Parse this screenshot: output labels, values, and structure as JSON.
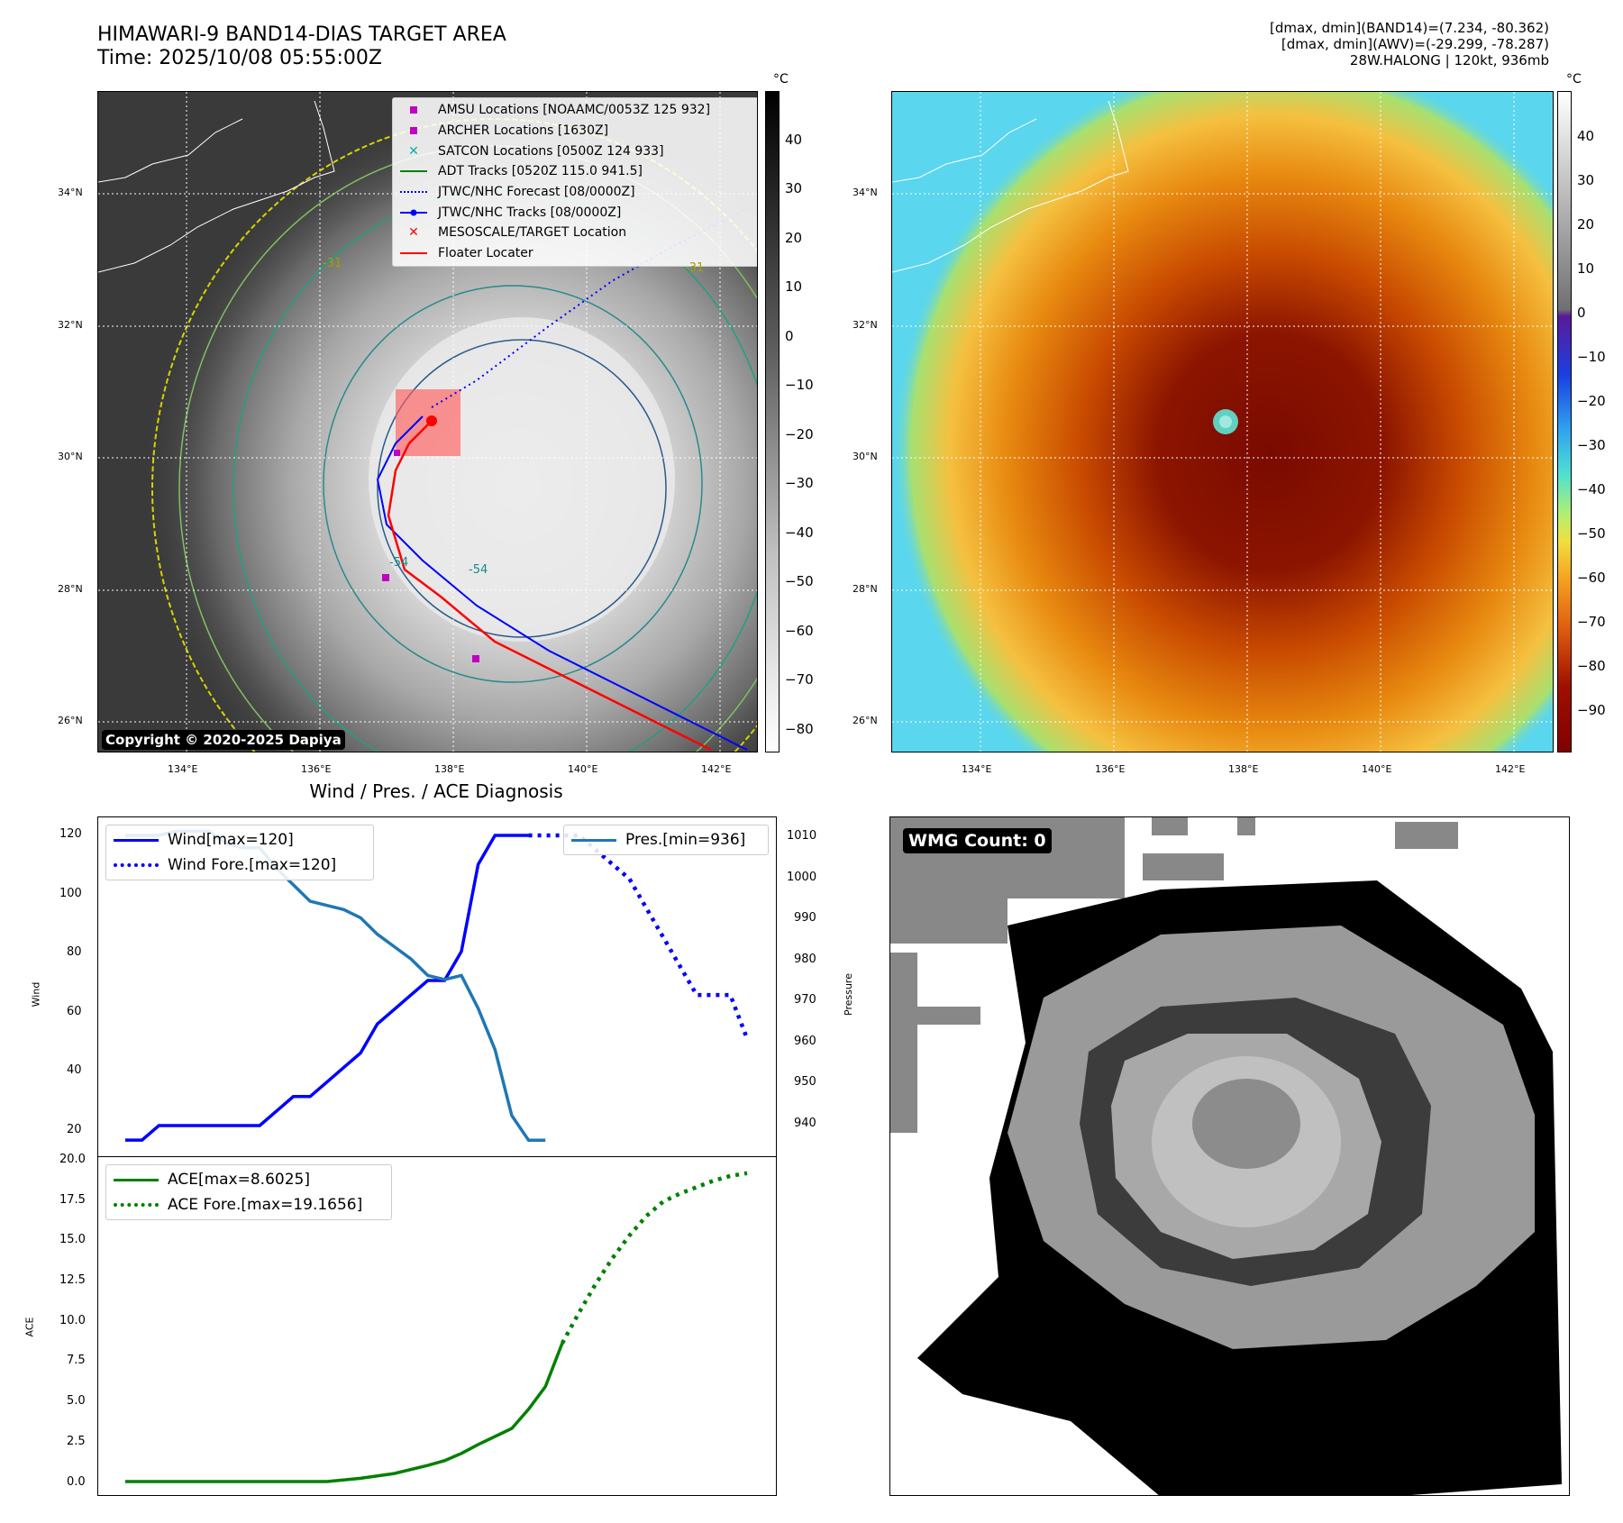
{
  "header": {
    "title_line1": "HIMAWARI-9 BAND14-DIAS TARGET AREA",
    "title_line2": "Time: 2025/10/08 05:55:00Z",
    "right_line1": "[dmax, dmin](BAND14)=(7.234, -80.362)",
    "right_line2": "[dmax, dmin](AWV)=(-29.299, -78.287)",
    "right_line3": "28W.HALONG | 120kt, 936mb"
  },
  "map_left": {
    "lat_labels": [
      "34°N",
      "32°N",
      "30°N",
      "28°N",
      "26°N"
    ],
    "lon_labels": [
      "134°E",
      "136°E",
      "138°E",
      "140°E",
      "142°E"
    ],
    "copyright": "Copyright © 2020-2025 Dapiya",
    "legend": [
      {
        "label": "AMSU Locations [NOAAMC/0053Z 125 932]",
        "symbol": "square",
        "color": "#c000c0"
      },
      {
        "label": "ARCHER Locations [1630Z]",
        "symbol": "square",
        "color": "#c000c0"
      },
      {
        "label": "SATCON Locations [0500Z 124 933]",
        "symbol": "x",
        "color": "#00b0b0"
      },
      {
        "label": "ADT Tracks [0520Z 115.0 941.5]",
        "symbol": "line",
        "color": "#008000"
      },
      {
        "label": "JTWC/NHC Forecast [08/0000Z]",
        "symbol": "dotted",
        "color": "#0000ff"
      },
      {
        "label": "JTWC/NHC Tracks [08/0000Z]",
        "symbol": "dotline",
        "color": "#0000ff"
      },
      {
        "label": "MESOSCALE/TARGET Location",
        "symbol": "x",
        "color": "#ff0000"
      },
      {
        "label": "Floater Locater",
        "symbol": "line",
        "color": "#ff0000"
      }
    ],
    "contour_labels": [
      "-31",
      "-54",
      "-54",
      "-31"
    ],
    "colorbar": {
      "unit": "°C",
      "ticks": [
        "40",
        "30",
        "20",
        "10",
        "0",
        "−10",
        "−20",
        "−30",
        "−40",
        "−50",
        "−60",
        "−70",
        "−80"
      ]
    }
  },
  "map_right": {
    "lat_labels": [
      "34°N",
      "32°N",
      "30°N",
      "28°N",
      "26°N"
    ],
    "lon_labels": [
      "134°E",
      "136°E",
      "138°E",
      "140°E",
      "142°E"
    ],
    "colorbar": {
      "unit": "°C",
      "ticks": [
        "40",
        "30",
        "20",
        "10",
        "0",
        "−10",
        "−20",
        "−30",
        "−40",
        "−50",
        "−60",
        "−70",
        "−80",
        "−90"
      ]
    }
  },
  "diagnosis": {
    "title": "Wind / Pres. / ACE Diagnosis",
    "wind_axis_label": "Wind",
    "pressure_axis_label": "Pressure",
    "ace_axis_label": "ACE",
    "wind_ticks": [
      "120",
      "100",
      "80",
      "60",
      "40",
      "20"
    ],
    "pres_ticks": [
      "1010",
      "1000",
      "990",
      "980",
      "970",
      "960",
      "950",
      "940"
    ],
    "ace_ticks": [
      "20.0",
      "17.5",
      "15.0",
      "12.5",
      "10.0",
      "7.5",
      "5.0",
      "2.5",
      "0.0"
    ],
    "legend_wind": "Wind[max=120]",
    "legend_wind_fore": "Wind Fore.[max=120]",
    "legend_pres": "Pres.[min=936]",
    "legend_ace": "ACE[max=8.6025]",
    "legend_ace_fore": "ACE Fore.[max=19.1656]"
  },
  "wmg": {
    "badge": "WMG Count: 0"
  },
  "chart_data": [
    {
      "type": "line",
      "title": "Wind / Pres. / ACE Diagnosis",
      "ylabel": "Wind",
      "ylabel_right": "Pressure",
      "ylim": [
        14,
        125
      ],
      "ylim_right": [
        932,
        1014
      ],
      "x": [
        0,
        1,
        2,
        3,
        4,
        5,
        6,
        7,
        8,
        9,
        10,
        11,
        12,
        13,
        14,
        15,
        16,
        17,
        18,
        19,
        20,
        21,
        22,
        23,
        24,
        25,
        26,
        27,
        28,
        29,
        30,
        31,
        32,
        33,
        34,
        35,
        36,
        37
      ],
      "series": [
        {
          "name": "Wind[max=120]",
          "axis": "left",
          "style": "solid",
          "color": "#0000ff",
          "x": [
            0,
            1,
            2,
            3,
            4,
            5,
            6,
            7,
            8,
            9,
            10,
            11,
            12,
            13,
            14,
            15,
            16,
            17,
            18,
            19,
            20,
            21,
            22,
            23,
            24
          ],
          "values": [
            15,
            15,
            20,
            20,
            20,
            20,
            20,
            20,
            20,
            25,
            30,
            30,
            35,
            40,
            45,
            55,
            60,
            65,
            70,
            70,
            80,
            110,
            120,
            120,
            120
          ]
        },
        {
          "name": "Wind Fore.[max=120]",
          "axis": "left",
          "style": "dotted",
          "color": "#0000ff",
          "x": [
            24,
            25,
            26,
            27,
            28,
            29,
            30,
            31,
            32,
            33,
            34,
            35,
            36,
            37
          ],
          "values": [
            120,
            120,
            120,
            120,
            115,
            110,
            105,
            95,
            85,
            75,
            65,
            65,
            65,
            50
          ]
        },
        {
          "name": "Pres.[min=936]",
          "axis": "right",
          "style": "solid",
          "color": "#1f77b4",
          "x": [
            0,
            1,
            2,
            3,
            4,
            5,
            6,
            7,
            8,
            9,
            10,
            11,
            12,
            13,
            14,
            15,
            16,
            17,
            18,
            19,
            20,
            21,
            22,
            23,
            24,
            25
          ],
          "values": [
            1010,
            1010,
            1010,
            1011,
            1011,
            1011,
            1008,
            1007,
            1007,
            1002,
            998,
            994,
            993,
            992,
            990,
            986,
            983,
            980,
            976,
            975,
            976,
            968,
            958,
            942,
            936,
            936
          ]
        }
      ]
    },
    {
      "type": "line",
      "ylabel": "ACE",
      "ylim": [
        -1,
        20
      ],
      "x": [
        0,
        1,
        2,
        3,
        4,
        5,
        6,
        7,
        8,
        9,
        10,
        11,
        12,
        13,
        14,
        15,
        16,
        17,
        18,
        19,
        20,
        21,
        22,
        23,
        24,
        25,
        26,
        27,
        28,
        29,
        30,
        31,
        32,
        33,
        34,
        35,
        36,
        37
      ],
      "series": [
        {
          "name": "ACE[max=8.6025]",
          "style": "solid",
          "color": "#008000",
          "x": [
            0,
            2,
            4,
            6,
            8,
            10,
            12,
            14,
            16,
            18,
            19,
            20,
            21,
            22,
            23,
            24,
            25,
            26
          ],
          "values": [
            0,
            0,
            0,
            0,
            0,
            0,
            0.0,
            0.2,
            0.5,
            1.0,
            1.3,
            1.75,
            2.3,
            2.8,
            3.3,
            4.5,
            5.9,
            8.6
          ]
        },
        {
          "name": "ACE Fore.[max=19.1656]",
          "style": "dotted",
          "color": "#008000",
          "x": [
            26,
            27,
            28,
            29,
            30,
            31,
            32,
            33,
            34,
            35,
            36,
            37
          ],
          "values": [
            8.6,
            10.5,
            12.3,
            13.9,
            15.3,
            16.5,
            17.4,
            17.9,
            18.3,
            18.7,
            19.0,
            19.17
          ]
        }
      ]
    }
  ]
}
